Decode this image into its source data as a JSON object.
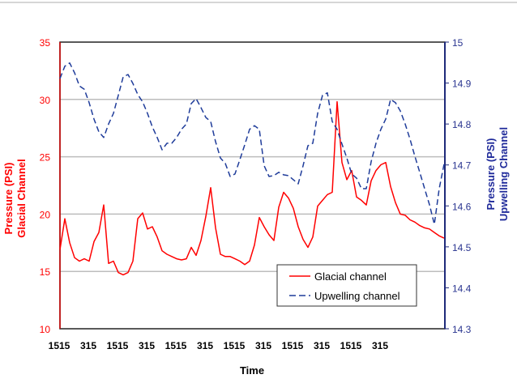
{
  "chart_data": {
    "type": "line",
    "title": "",
    "xlabel": "Time",
    "ylabel_left": [
      "Pressure (PSI)",
      "Glacial Channel"
    ],
    "ylabel_right": [
      "Pressure (PSI)",
      "Upwelling Channel"
    ],
    "ylim_left": [
      10,
      35
    ],
    "ylim_right": [
      14.3,
      15.0
    ],
    "yticks_left": [
      "10",
      "15",
      "20",
      "25",
      "30",
      "35"
    ],
    "yticks_right": [
      "14.3",
      "14.4",
      "14.5",
      "14.6",
      "14.7",
      "14.8",
      "14.9",
      "15"
    ],
    "grid": "horizontal at left-axis ticks",
    "legend_placement": "bottom-right",
    "x_tick_labels": [
      "1515",
      "315",
      "1515",
      "315",
      "1515",
      "315",
      "1515",
      "315",
      "1515",
      "315",
      "1515",
      "315"
    ],
    "x": [
      "1515",
      "1715",
      "1915",
      "2115",
      "2315",
      "0115",
      "0315",
      "0515",
      "0715",
      "0915",
      "1115",
      "1315",
      "1515",
      "1715",
      "1915",
      "2115",
      "2315",
      "0115",
      "0315",
      "0515",
      "0715",
      "0915",
      "1115",
      "1315",
      "1515",
      "1715",
      "1915",
      "2115",
      "2315",
      "0115",
      "0315",
      "0515",
      "0715",
      "0915",
      "1115",
      "1315",
      "1515",
      "1715",
      "1915",
      "2115",
      "2315",
      "0115",
      "0315",
      "0515",
      "0715",
      "0915",
      "1115",
      "1315",
      "1515",
      "1715",
      "1915",
      "2115",
      "2315",
      "0115",
      "0315",
      "0515",
      "0715",
      "0915",
      "1115",
      "1315",
      "1515",
      "1715",
      "1915",
      "2115",
      "2315",
      "0115",
      "0315",
      "0515",
      "0715",
      "0915",
      "1115",
      "1315",
      "1515",
      "1715",
      "1915",
      "2115",
      "2315",
      "0115",
      "0315",
      "0515"
    ],
    "series": [
      {
        "name": "Glacial channel",
        "axis": "left",
        "color": "#ff0000",
        "style": "solid",
        "values": [
          16.9,
          19.6,
          17.5,
          16.2,
          15.9,
          16.1,
          15.9,
          17.6,
          18.4,
          20.8,
          15.7,
          15.9,
          14.9,
          14.7,
          14.9,
          15.9,
          19.6,
          20.1,
          18.7,
          18.9,
          18.0,
          16.8,
          16.5,
          16.3,
          16.1,
          16.0,
          16.1,
          17.1,
          16.4,
          17.7,
          19.8,
          22.3,
          18.8,
          16.5,
          16.3,
          16.3,
          16.1,
          15.9,
          15.6,
          15.9,
          17.3,
          19.7,
          18.9,
          18.2,
          17.7,
          20.6,
          21.9,
          21.4,
          20.5,
          18.9,
          17.8,
          17.1,
          18.0,
          20.7,
          21.2,
          21.7,
          21.9,
          29.8,
          24.5,
          23.0,
          23.8,
          21.5,
          21.2,
          20.8,
          22.9,
          23.8,
          24.3,
          24.5,
          22.4,
          21.0,
          20.0,
          19.9,
          19.5,
          19.3,
          19.0,
          18.8,
          18.7,
          18.4,
          18.1,
          17.9
        ]
      },
      {
        "name": "Upwelling channel",
        "axis": "right",
        "color": "#1f3c9a",
        "style": "dashed",
        "values": [
          14.911,
          14.941,
          14.949,
          14.925,
          14.893,
          14.885,
          14.852,
          14.812,
          14.781,
          14.767,
          14.8,
          14.826,
          14.87,
          14.915,
          14.921,
          14.899,
          14.872,
          14.854,
          14.826,
          14.793,
          14.767,
          14.737,
          14.753,
          14.753,
          14.767,
          14.787,
          14.8,
          14.85,
          14.862,
          14.84,
          14.816,
          14.806,
          14.757,
          14.717,
          14.704,
          14.672,
          14.678,
          14.713,
          14.749,
          14.787,
          14.796,
          14.787,
          14.698,
          14.672,
          14.674,
          14.682,
          14.676,
          14.674,
          14.664,
          14.654,
          14.698,
          14.747,
          14.753,
          14.826,
          14.87,
          14.876,
          14.806,
          14.787,
          14.751,
          14.717,
          14.678,
          14.668,
          14.642,
          14.642,
          14.708,
          14.753,
          14.787,
          14.812,
          14.86,
          14.852,
          14.832,
          14.8,
          14.763,
          14.721,
          14.682,
          14.642,
          14.603,
          14.555,
          14.642,
          14.702
        ]
      }
    ],
    "colors": {
      "left_axis": "#ff0000",
      "right_axis": "#1f2a7a",
      "grid": "#bdbdbd"
    }
  }
}
